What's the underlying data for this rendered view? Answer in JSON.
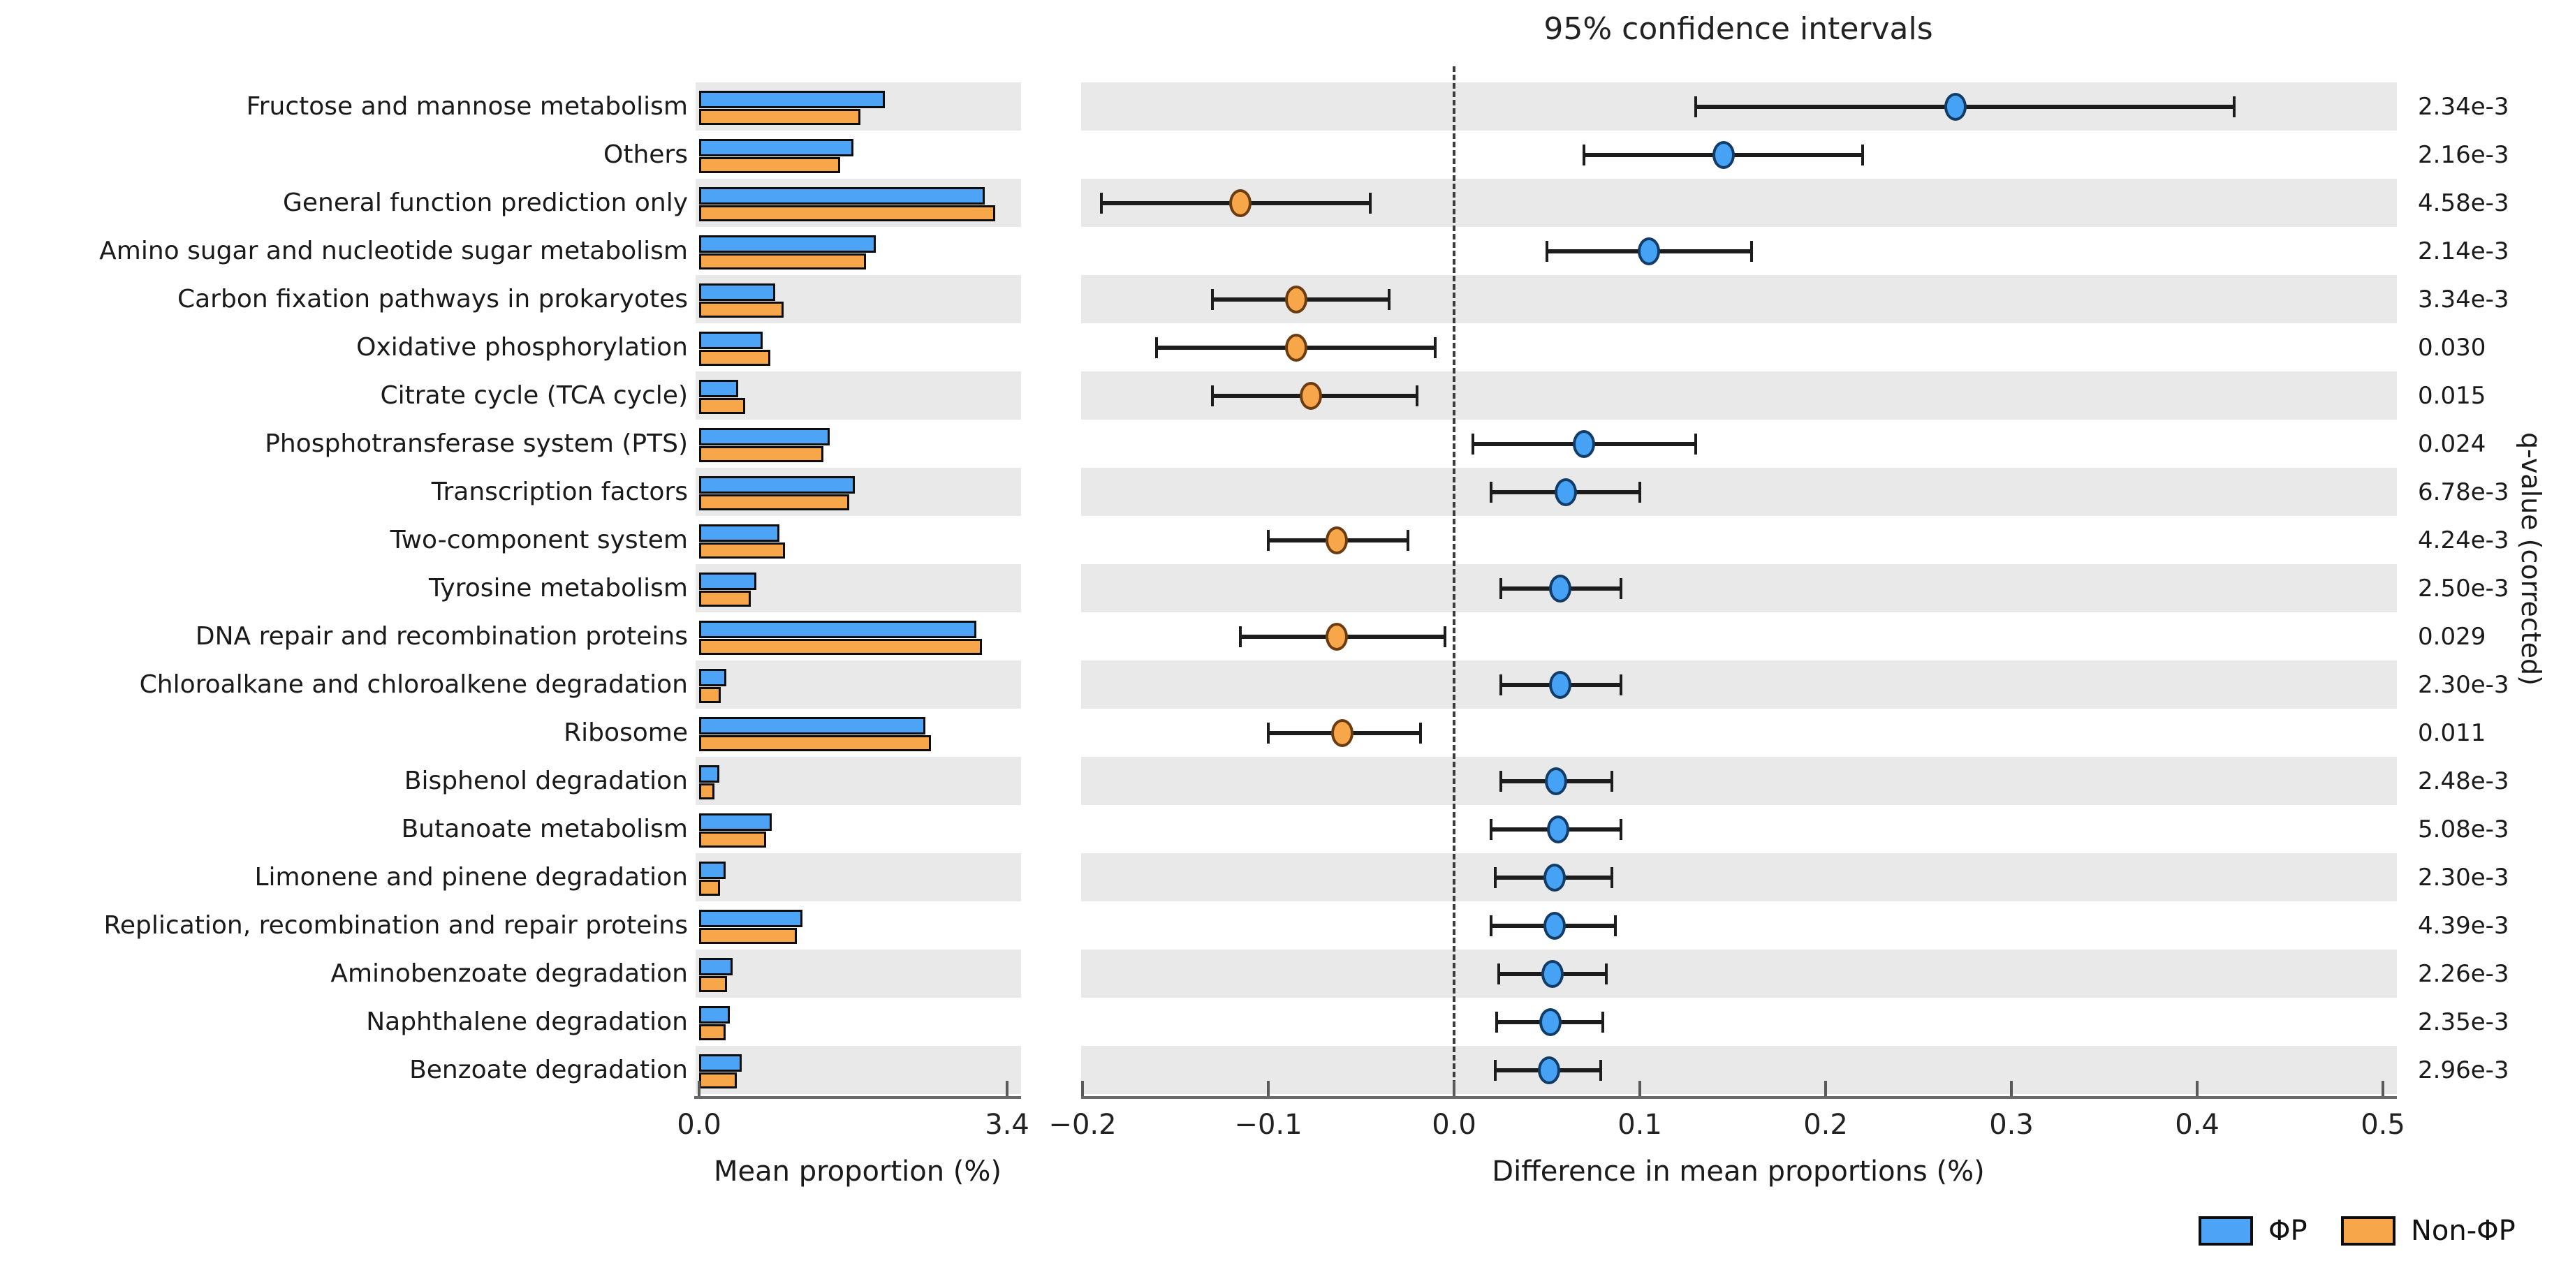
{
  "title": "95% confidence intervals",
  "left_axis": {
    "label": "Mean proportion (%)",
    "tick_labels": [
      "0.0",
      "3.4"
    ],
    "tick_values": [
      0.0,
      3.4
    ],
    "range": [
      0.0,
      3.4
    ]
  },
  "right_axis": {
    "label": "Difference in mean proportions (%)",
    "tick_labels": [
      "−0.2",
      "−0.1",
      "0.0",
      "0.1",
      "0.2",
      "0.3",
      "0.4",
      "0.5"
    ],
    "tick_values": [
      -0.2,
      -0.1,
      0.0,
      0.1,
      0.2,
      0.3,
      0.4,
      0.5
    ],
    "range": [
      -0.2,
      0.5
    ],
    "zero_line": 0.0
  },
  "q_axis_label": "q-value (corrected)",
  "legend": {
    "position": "bottom-right",
    "items": [
      {
        "label": "ΦP",
        "color": "#4da3f5"
      },
      {
        "label": "Non-ΦP",
        "color": "#f7a64a"
      }
    ]
  },
  "colors": {
    "phiP_blue": "#4da3f5",
    "nonPhiP_orange": "#f7a64a",
    "stripe_gray": "#e9e9e9",
    "error_bar": "#1c1c1c",
    "zero_line_dash": "#3c3c3c"
  },
  "chart_data": {
    "type": "bar",
    "subtype": "extended-error-bar (STAMP-style): grouped mean-proportion bars + 95% CI of difference + corrected q-values",
    "groups": [
      "ΦP",
      "Non-ΦP"
    ],
    "categories": [
      "Fructose and mannose metabolism",
      "Others",
      "General function prediction only",
      "Amino sugar and nucleotide sugar metabolism",
      "Carbon fixation pathways in prokaryotes",
      "Oxidative phosphorylation",
      "Citrate cycle (TCA cycle)",
      "Phosphotransferase system (PTS)",
      "Transcription factors",
      "Two-component system",
      "Tyrosine metabolism",
      "DNA repair and recombination proteins",
      "Chloroalkane and chloroalkene degradation",
      "Ribosome",
      "Bisphenol degradation",
      "Butanoate metabolism",
      "Limonene and pinene degradation",
      "Replication, recombination and repair proteins",
      "Aminobenzoate degradation",
      "Naphthalene degradation",
      "Benzoate degradation"
    ],
    "series": [
      {
        "name": "ΦP mean proportion (%)",
        "values": [
          2.05,
          1.7,
          3.15,
          1.95,
          0.84,
          0.7,
          0.43,
          1.44,
          1.72,
          0.89,
          0.63,
          3.06,
          0.3,
          2.5,
          0.22,
          0.8,
          0.29,
          1.14,
          0.37,
          0.34,
          0.47
        ]
      },
      {
        "name": "Non-ΦP mean proportion (%)",
        "values": [
          1.78,
          1.56,
          3.27,
          1.84,
          0.93,
          0.79,
          0.51,
          1.37,
          1.66,
          0.95,
          0.57,
          3.12,
          0.24,
          2.56,
          0.17,
          0.74,
          0.23,
          1.08,
          0.31,
          0.29,
          0.42
        ]
      }
    ],
    "difference_in_mean_proportions": {
      "values": [
        0.27,
        0.145,
        -0.115,
        0.105,
        -0.085,
        -0.085,
        -0.077,
        0.07,
        0.06,
        -0.063,
        0.057,
        -0.063,
        0.057,
        -0.06,
        0.055,
        0.056,
        0.054,
        0.054,
        0.053,
        0.052,
        0.051
      ],
      "ci_low": [
        0.13,
        0.07,
        -0.19,
        0.05,
        -0.13,
        -0.16,
        -0.13,
        0.01,
        0.02,
        -0.1,
        0.025,
        -0.115,
        0.025,
        -0.1,
        0.025,
        0.02,
        0.022,
        0.02,
        0.024,
        0.023,
        0.022
      ],
      "ci_high": [
        0.42,
        0.22,
        -0.045,
        0.16,
        -0.035,
        -0.01,
        -0.02,
        0.13,
        0.1,
        -0.025,
        0.09,
        -0.005,
        0.09,
        -0.018,
        0.085,
        0.09,
        0.085,
        0.087,
        0.082,
        0.08,
        0.079
      ],
      "dot_color_group": [
        "ΦP",
        "ΦP",
        "Non-ΦP",
        "ΦP",
        "Non-ΦP",
        "Non-ΦP",
        "Non-ΦP",
        "ΦP",
        "ΦP",
        "Non-ΦP",
        "ΦP",
        "Non-ΦP",
        "ΦP",
        "Non-ΦP",
        "ΦP",
        "ΦP",
        "ΦP",
        "ΦP",
        "ΦP",
        "ΦP",
        "ΦP"
      ]
    },
    "q_values": [
      "2.34e-3",
      "2.16e-3",
      "4.58e-3",
      "2.14e-3",
      "3.34e-3",
      "0.030",
      "0.015",
      "0.024",
      "6.78e-3",
      "4.24e-3",
      "2.50e-3",
      "0.029",
      "2.30e-3",
      "0.011",
      "2.48e-3",
      "5.08e-3",
      "2.30e-3",
      "4.39e-3",
      "2.26e-3",
      "2.35e-3",
      "2.96e-3"
    ],
    "title": "95% confidence intervals",
    "xlabel_left": "Mean proportion (%)",
    "xlabel_right": "Difference in mean proportions (%)",
    "xlim_left": [
      0.0,
      3.4
    ],
    "xlim_right": [
      -0.2,
      0.5
    ],
    "grid": false,
    "row_banding": "alternating gray stripes starting at first row",
    "legend_position": "bottom-right"
  }
}
